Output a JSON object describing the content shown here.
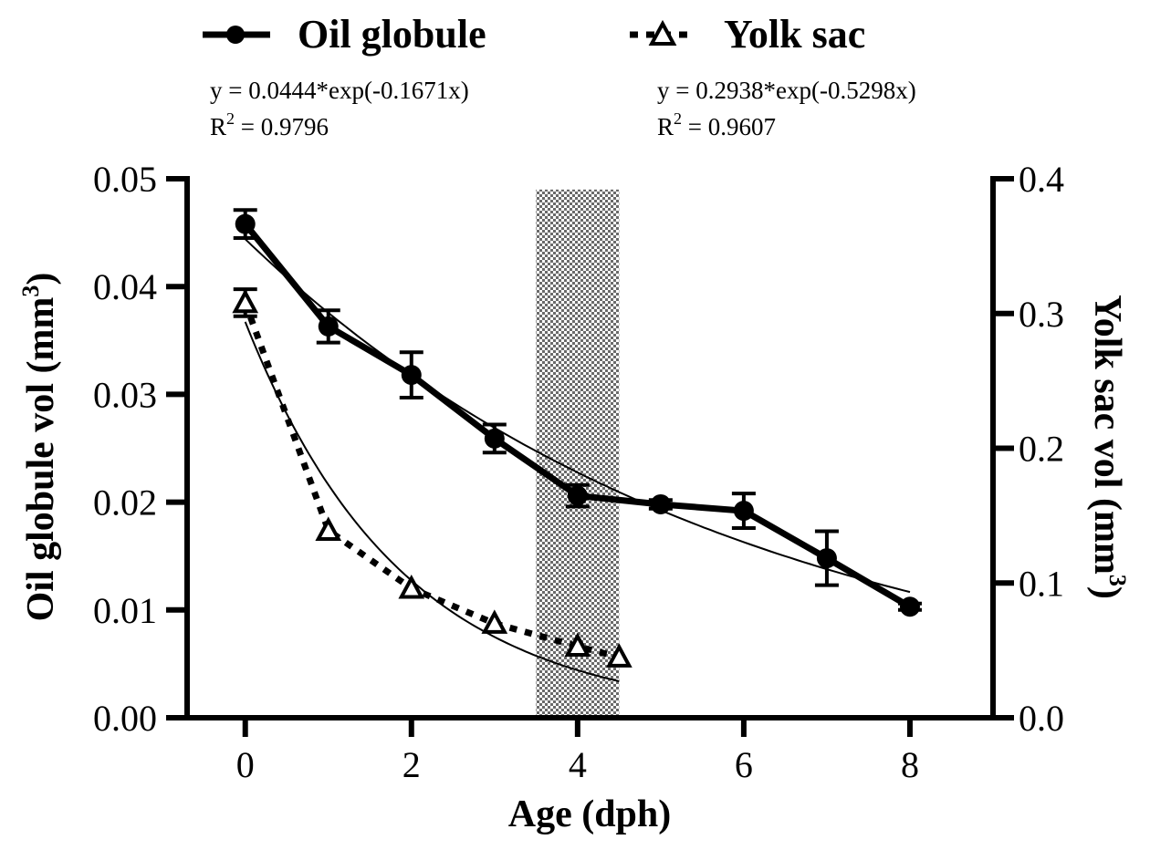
{
  "chart_data": {
    "type": "line",
    "xlabel": "Age (dph)",
    "ylabel_left": "Oil globule vol (mm",
    "ylabel_right": "Yolk sac vol (mm",
    "ylabel_unit_sup": "3",
    "ylabel_close": ")",
    "xlim": [
      -0.7,
      9.0
    ],
    "ylim_left": [
      0.0,
      0.05
    ],
    "ylim_right": [
      0.0,
      0.4
    ],
    "x_ticks": [
      0,
      2,
      4,
      6,
      8
    ],
    "x_tick_labels": [
      "0",
      "2",
      "4",
      "6",
      "8"
    ],
    "y_ticks_left": [
      0.0,
      0.01,
      0.02,
      0.03,
      0.04,
      0.05
    ],
    "y_tick_labels_left": [
      "0.00",
      "0.01",
      "0.02",
      "0.03",
      "0.04",
      "0.05"
    ],
    "y_ticks_right": [
      0.0,
      0.1,
      0.2,
      0.3,
      0.4
    ],
    "y_tick_labels_right": [
      "0.0",
      "0.1",
      "0.2",
      "0.3",
      "0.4"
    ],
    "shaded_region": {
      "x_range": [
        3.5,
        4.5
      ],
      "y_range_left": [
        0.0,
        0.049
      ],
      "pattern": "checkerboard"
    },
    "legend_position": "top",
    "series": [
      {
        "name": "Oil globule",
        "axis": "left",
        "marker": "circle",
        "line_style": "solid",
        "x": [
          0,
          1,
          2,
          3,
          4,
          5,
          6,
          7,
          8
        ],
        "y": [
          0.0458,
          0.0363,
          0.0318,
          0.0259,
          0.0206,
          0.0198,
          0.0192,
          0.0148,
          0.0103
        ],
        "error": [
          0.0013,
          0.0015,
          0.0021,
          0.0013,
          0.001,
          0.0004,
          0.0016,
          0.0025,
          0.0003
        ],
        "fit": {
          "a": 0.0444,
          "b": -0.1671,
          "x_range": [
            0,
            8
          ]
        },
        "equation": "y = 0.0444*exp(-0.1671x)",
        "r2_label": "R",
        "r2_sup": "2",
        "r2_value": " = 0.9796"
      },
      {
        "name": "Yolk sac",
        "axis": "right",
        "marker": "triangle",
        "line_style": "dotted",
        "x": [
          0,
          1,
          2,
          3,
          4,
          4.5
        ],
        "y": [
          0.308,
          0.139,
          0.096,
          0.07,
          0.053,
          0.045
        ],
        "error": [
          0.01,
          0,
          0,
          0,
          0,
          0
        ],
        "fit": {
          "a": 0.2938,
          "b": -0.5298,
          "x_range": [
            0,
            4.5
          ]
        },
        "equation": "y = 0.2938*exp(-0.5298x)",
        "r2_label": "R",
        "r2_sup": "2",
        "r2_value": " = 0.9607"
      }
    ]
  }
}
